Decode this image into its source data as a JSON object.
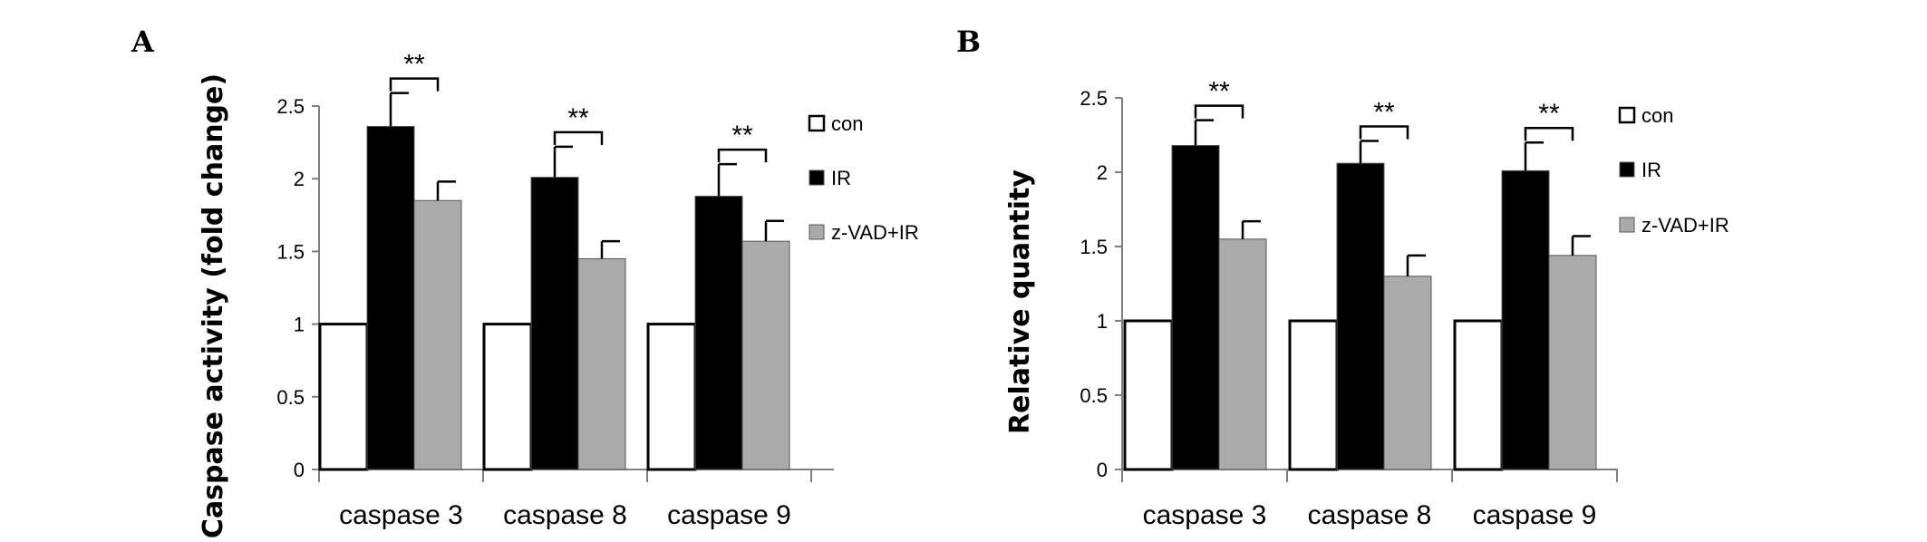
{
  "chart_data": [
    {
      "panel": "A",
      "type": "bar",
      "title": "",
      "xlabel": "",
      "ylabel": "Caspase activity (fold change)",
      "ylim": [
        0,
        2.5
      ],
      "yticks": [
        "0",
        "0.5",
        "1",
        "1.5",
        "2",
        "2.5"
      ],
      "categories": [
        "caspase 3",
        "caspase 8",
        "caspase 9"
      ],
      "series": [
        {
          "name": "con",
          "color": "#ffffff",
          "values": [
            1,
            1,
            1
          ],
          "errors": [
            0,
            0,
            0
          ]
        },
        {
          "name": "IR",
          "color": "#000000",
          "values": [
            2.36,
            2.01,
            1.88
          ],
          "errors": [
            0.23,
            0.21,
            0.22
          ]
        },
        {
          "name": "z-VAD+IR",
          "color": "#aaaaaa",
          "values": [
            1.85,
            1.45,
            1.57
          ],
          "errors": [
            0.13,
            0.12,
            0.14
          ]
        }
      ],
      "significance": [
        "**",
        "**",
        "**"
      ],
      "legend_position": "right"
    },
    {
      "panel": "B",
      "type": "bar",
      "title": "",
      "xlabel": "",
      "ylabel": "Relative  quantity",
      "ylim": [
        0,
        2.5
      ],
      "yticks": [
        "0",
        "0.5",
        "1",
        "1.5",
        "2",
        "2.5"
      ],
      "categories": [
        "caspase 3",
        "caspase 8",
        "caspase 9"
      ],
      "series": [
        {
          "name": "con",
          "color": "#ffffff",
          "values": [
            1,
            1,
            1
          ],
          "errors": [
            0,
            0,
            0
          ]
        },
        {
          "name": "IR",
          "color": "#000000",
          "values": [
            2.18,
            2.06,
            2.01
          ],
          "errors": [
            0.17,
            0.15,
            0.19
          ]
        },
        {
          "name": "z-VAD+IR",
          "color": "#aaaaaa",
          "values": [
            1.55,
            1.3,
            1.44
          ],
          "errors": [
            0.12,
            0.14,
            0.13
          ]
        }
      ],
      "significance": [
        "**",
        "**",
        "**"
      ],
      "legend_position": "right"
    }
  ]
}
